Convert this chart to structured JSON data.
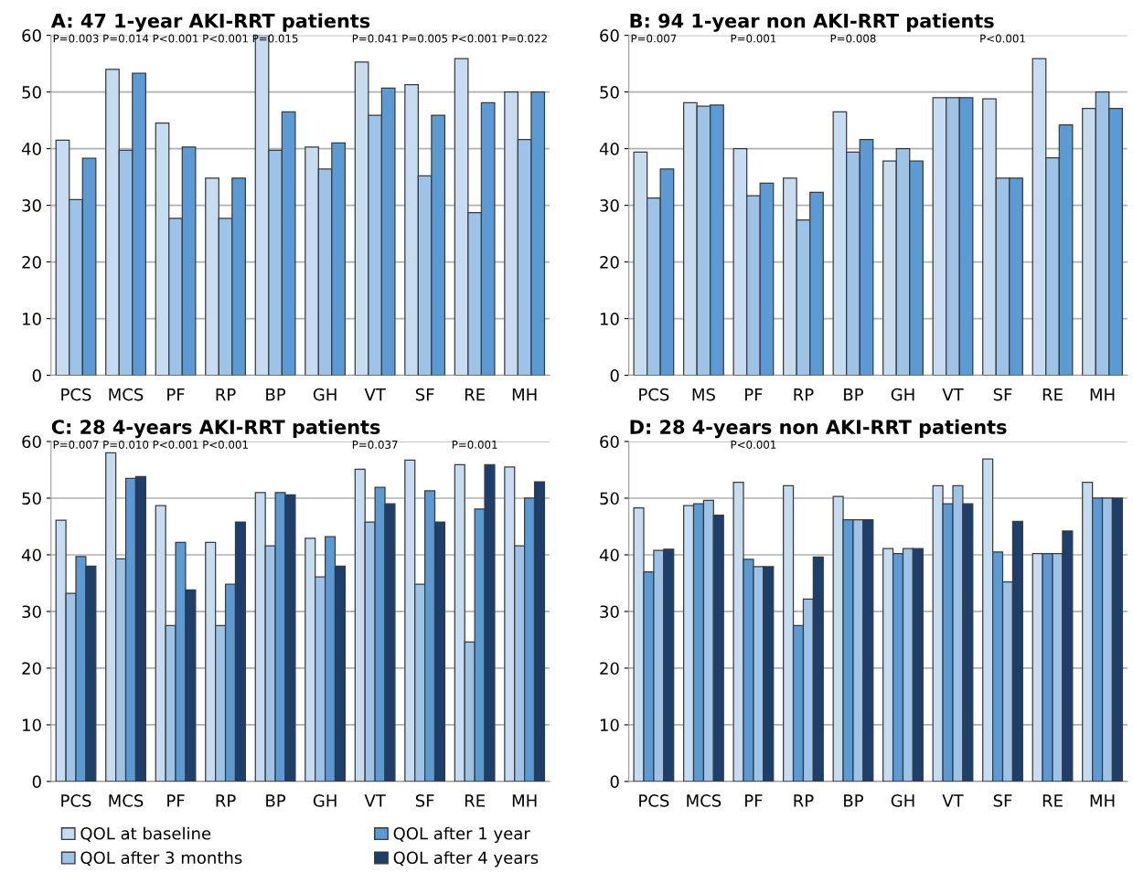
{
  "chart_data": [
    {
      "type": "bar",
      "title": "A: 47 1-year AKI-RRT patients",
      "categories": [
        "PCS",
        "MCS",
        "PF",
        "RP",
        "BP",
        "GH",
        "VT",
        "SF",
        "RE",
        "MH"
      ],
      "series": [
        {
          "color": "#c6dcf0",
          "values": [
            41.5,
            54,
            44.5,
            34.8,
            60,
            40.3,
            55.3,
            51.3,
            55.9,
            50
          ]
        },
        {
          "color": "#9dc3e6",
          "values": [
            31,
            39.7,
            27.7,
            27.7,
            39.7,
            36.4,
            45.9,
            35.2,
            28.7,
            41.6
          ]
        },
        {
          "color": "#5b9bd5",
          "values": [
            38.3,
            53.3,
            40.3,
            34.8,
            46.5,
            41,
            50.7,
            45.9,
            48.1,
            50
          ]
        }
      ],
      "ylim": [
        0,
        60
      ],
      "yticks": [
        0,
        10,
        20,
        30,
        40,
        50,
        60
      ],
      "grid": "y",
      "annotations": [
        "P=0.003",
        "P=0.014",
        "P<0.001",
        "P<0.001",
        "P=0.015",
        "P=0.041",
        "P=0.005",
        "P<0.001",
        "P=0.022"
      ]
    },
    {
      "type": "bar",
      "title": "B: 94 1-year non AKI-RRT patients",
      "categories": [
        "PCS",
        "MS",
        "PF",
        "RP",
        "BP",
        "GH",
        "VT",
        "SF",
        "RE",
        "MH"
      ],
      "series": [
        {
          "color": "#c6dcf0",
          "values": [
            39.4,
            48.1,
            40,
            34.8,
            46.5,
            37.8,
            49,
            48.8,
            55.9,
            47.1
          ]
        },
        {
          "color": "#9dc3e6",
          "values": [
            31.3,
            47.5,
            31.7,
            27.4,
            39.4,
            40,
            49,
            34.8,
            38.4,
            50
          ]
        },
        {
          "color": "#5b9bd5",
          "values": [
            36.4,
            47.7,
            33.9,
            32.3,
            41.6,
            37.8,
            49,
            34.8,
            44.2,
            47.1
          ]
        }
      ],
      "ylim": [
        0,
        60
      ],
      "yticks": [
        0,
        10,
        20,
        30,
        40,
        50,
        60
      ],
      "grid": "y",
      "annotations": [
        "P=0.007",
        "P=0.001",
        "P=0.008",
        "P<0.001"
      ]
    },
    {
      "type": "bar",
      "title": "C: 28 4-years AKI-RRT patients",
      "categories": [
        "PCS",
        "MCS",
        "PF",
        "RP",
        "BP",
        "GH",
        "VT",
        "SF",
        "RE",
        "MH"
      ],
      "series": [
        {
          "name": "QOL at baseline",
          "color": "#c6dcf0",
          "values": [
            46.1,
            58,
            48.7,
            42.2,
            51,
            42.9,
            55.1,
            56.7,
            55.9,
            55.5
          ]
        },
        {
          "name": "QOL after 3 months",
          "color": "#9dc3e6",
          "values": [
            33.2,
            39.3,
            27.5,
            27.5,
            41.6,
            36.1,
            45.8,
            34.8,
            24.6,
            41.6
          ]
        },
        {
          "name": "QOL after 1 year",
          "color": "#5b9bd5",
          "values": [
            39.7,
            53.5,
            42.2,
            34.8,
            51,
            43.2,
            51.9,
            51.3,
            48.1,
            50
          ]
        },
        {
          "name": "QOL after 4 years",
          "color": "#1c3f6b",
          "values": [
            38,
            53.8,
            33.8,
            45.8,
            50.6,
            38,
            49,
            45.8,
            55.9,
            52.9
          ]
        }
      ],
      "ylim": [
        0,
        60
      ],
      "yticks": [
        0,
        10,
        20,
        30,
        40,
        50,
        60
      ],
      "grid": "y",
      "legend": "bottom",
      "annotations": [
        "P=0.007",
        "P=0.010",
        "P<0.001",
        "P<0.001",
        "P=0.037",
        "P=0.001"
      ]
    },
    {
      "type": "bar",
      "title": "D: 28 4-years non AKI-RRT patients",
      "categories": [
        "PCS",
        "MCS",
        "PF",
        "RP",
        "BP",
        "GH",
        "VT",
        "SF",
        "RE",
        "MH"
      ],
      "series": [
        {
          "color": "#c6dcf0",
          "values": [
            48.3,
            48.7,
            52.8,
            52.2,
            50.3,
            41.1,
            52.2,
            56.9,
            40.2,
            52.8
          ]
        },
        {
          "color": "#5b9bd5",
          "values": [
            37,
            49,
            39.2,
            27.5,
            46.2,
            40.2,
            49,
            40.5,
            40.2,
            50
          ]
        },
        {
          "color": "#9dc3e6",
          "values": [
            40.8,
            49.6,
            37.9,
            32.2,
            46.2,
            41.1,
            52.2,
            35.2,
            40.2,
            50
          ]
        },
        {
          "color": "#1c3f6b",
          "values": [
            41,
            47,
            37.9,
            39.6,
            46.2,
            41.1,
            49,
            45.9,
            44.2,
            50
          ]
        }
      ],
      "ylim": [
        0,
        60
      ],
      "yticks": [
        0,
        10,
        20,
        30,
        40,
        50,
        60
      ],
      "grid": "y",
      "annotations": [
        "P<0.001"
      ]
    }
  ]
}
